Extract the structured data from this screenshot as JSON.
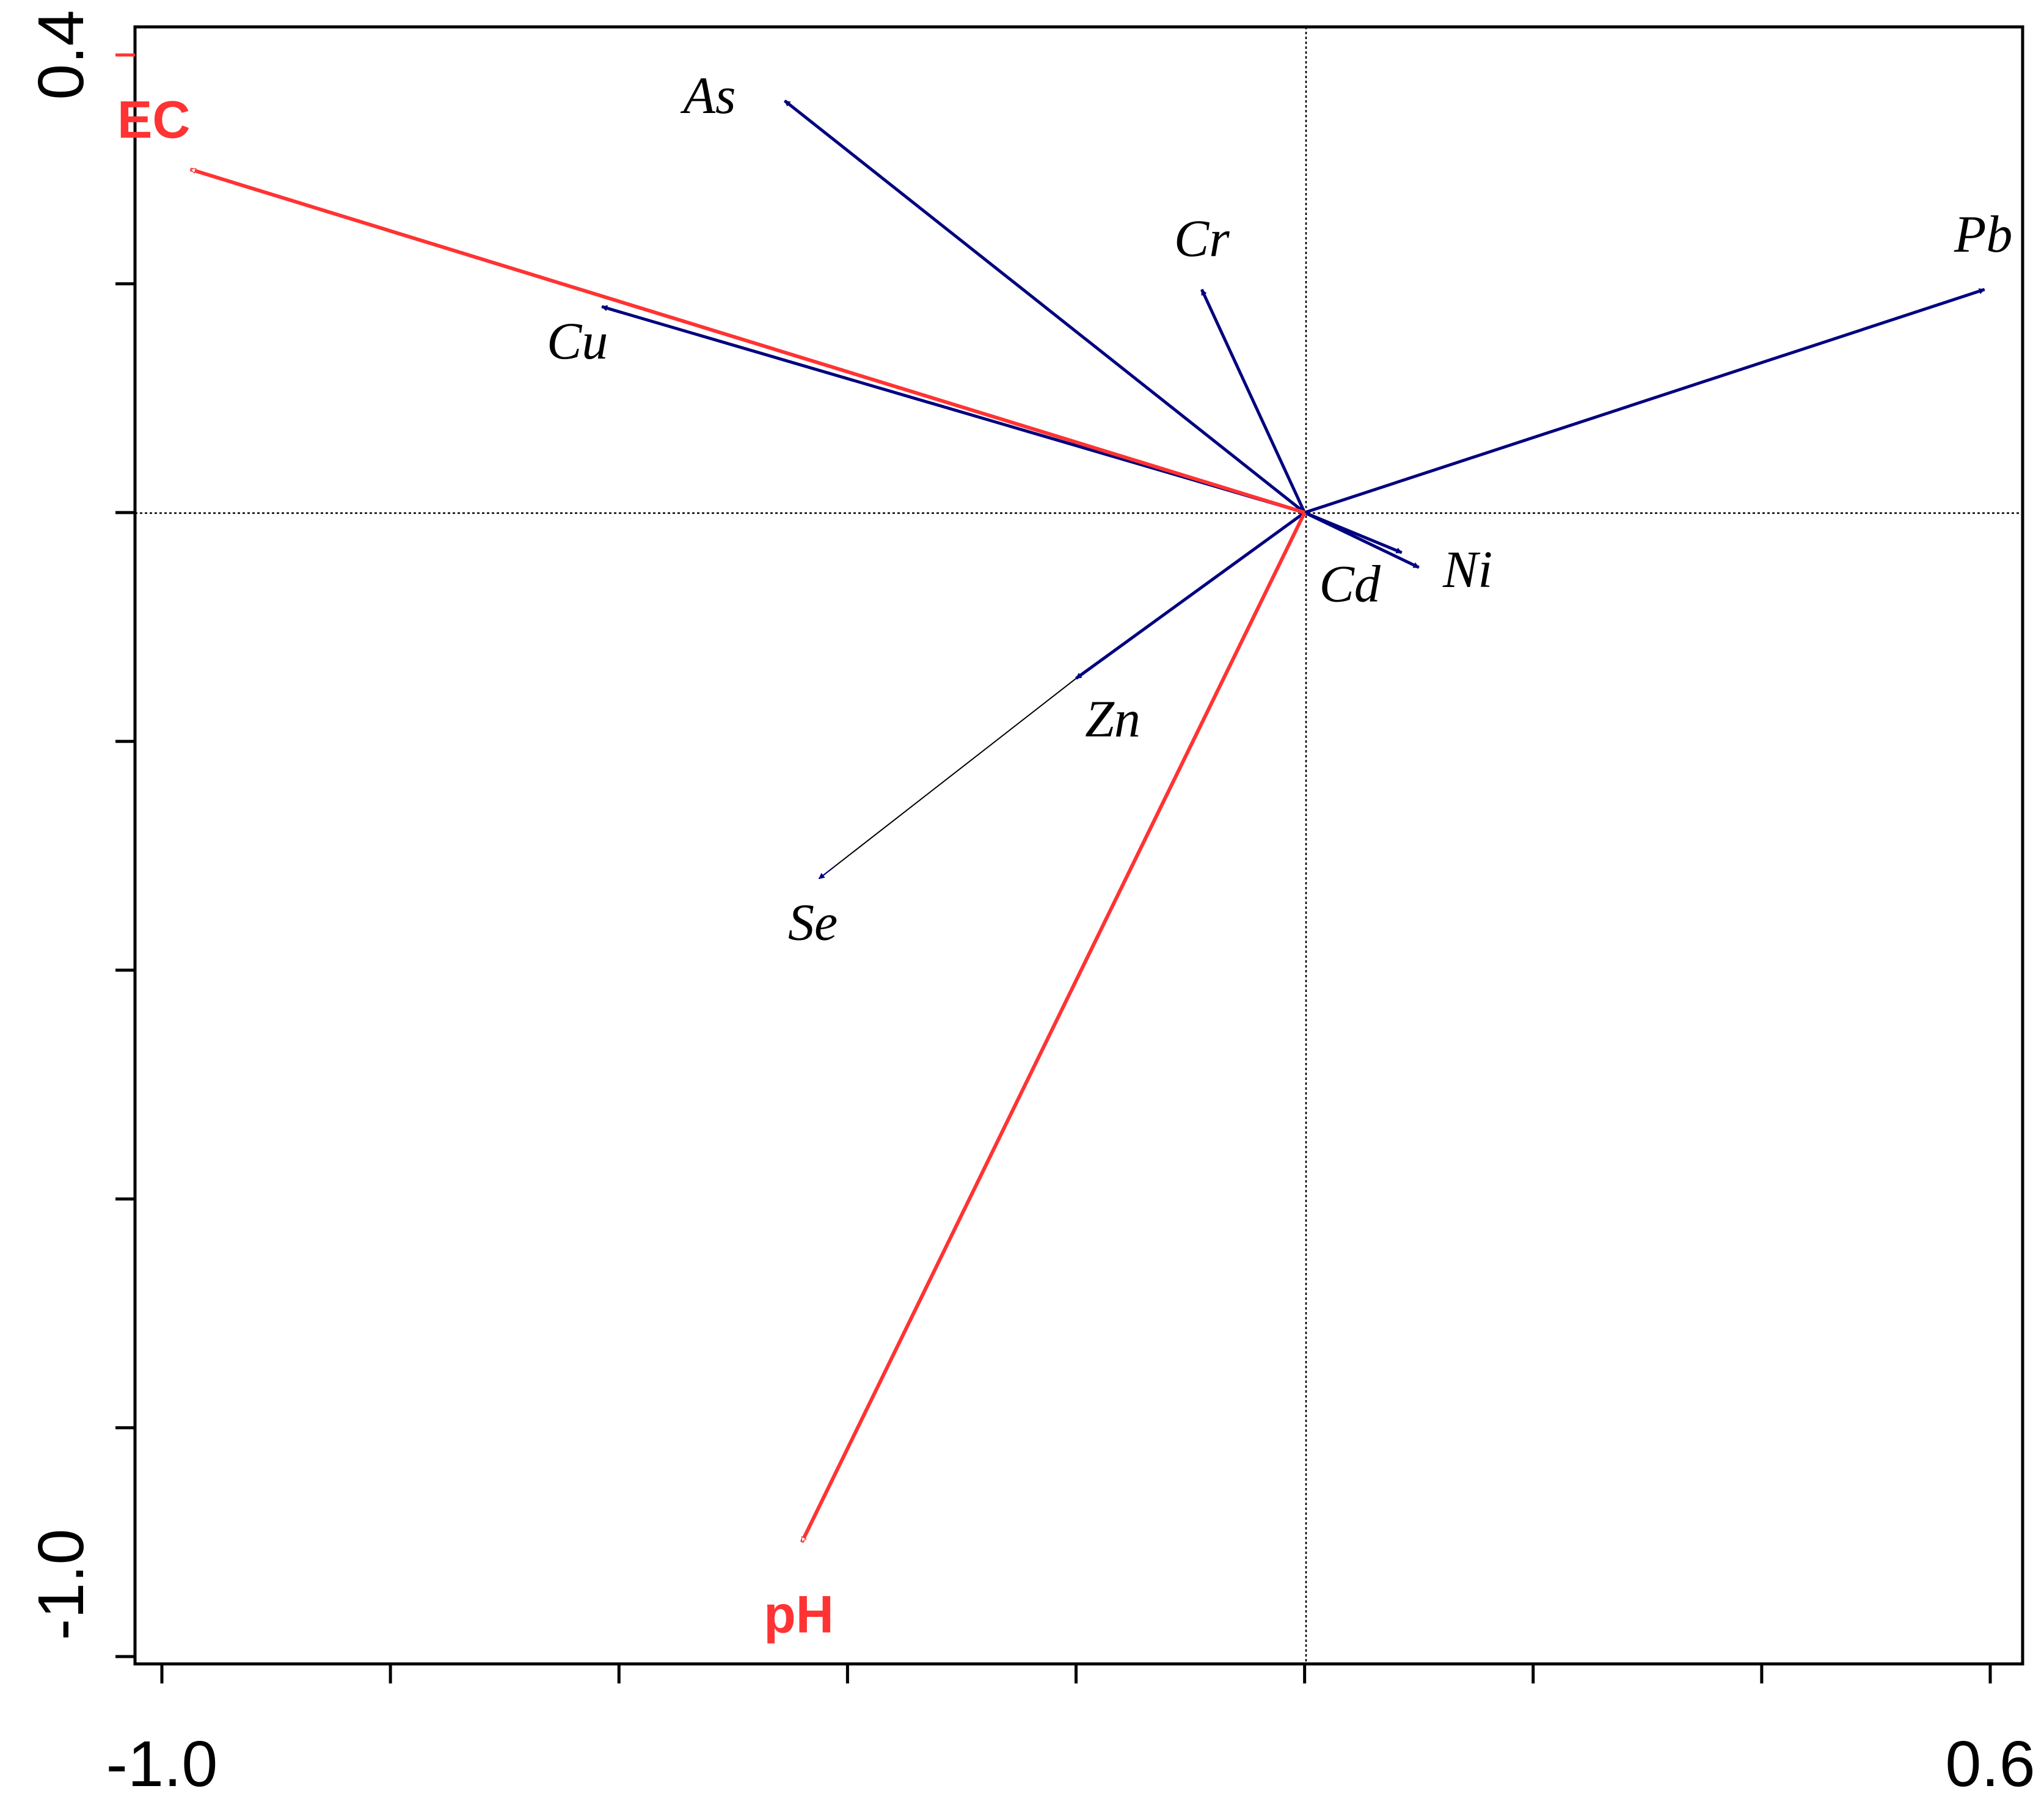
{
  "chart_data": {
    "type": "biplot",
    "title": "",
    "xlabel": "",
    "ylabel": "",
    "xlim": [
      -1.0,
      0.6
    ],
    "ylim": [
      -1.0,
      0.4
    ],
    "x_tick_labels": [
      "-1.0",
      "0.6"
    ],
    "y_tick_labels": [
      "0.4",
      "-1.0"
    ],
    "grid": false,
    "legend": "none",
    "reference_lines": [
      0,
      0
    ],
    "species": [
      {
        "name": "As",
        "x": -0.455,
        "y": 0.36
      },
      {
        "name": "Cu",
        "x": -0.615,
        "y": 0.18
      },
      {
        "name": "Cr",
        "x": -0.09,
        "y": 0.195
      },
      {
        "name": "Pb",
        "x": 0.595,
        "y": 0.195
      },
      {
        "name": "Ni",
        "x": 0.1,
        "y": -0.048
      },
      {
        "name": "Cd",
        "x": 0.085,
        "y": -0.035
      },
      {
        "name": "Zn",
        "x": -0.2,
        "y": -0.145
      },
      {
        "name": "Se",
        "x": -0.425,
        "y": -0.32
      }
    ],
    "environment": [
      {
        "name": "EC",
        "x": -0.975,
        "y": 0.3
      },
      {
        "name": "pH",
        "x": -0.44,
        "y": -0.9
      }
    ],
    "colors": {
      "species_arrow": "#00007f",
      "environment_arrow": "#ff3333",
      "axis": "#000000",
      "reference_line": "#000000"
    }
  }
}
